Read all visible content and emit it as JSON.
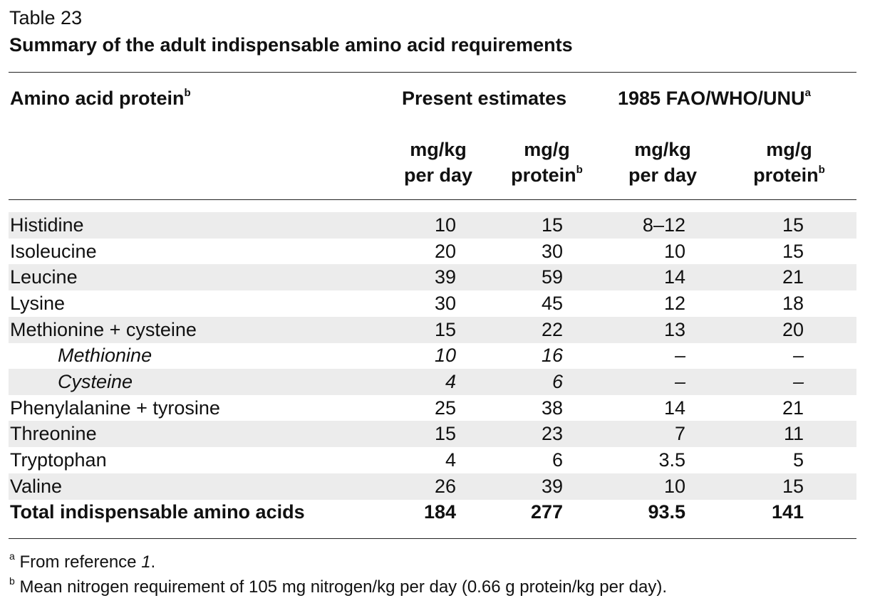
{
  "table_label": "Table 23",
  "title": "Summary of the adult indispensable amino acid requirements",
  "header": {
    "col1": "Amino acid protein",
    "col1_sup": "b",
    "group1": "Present estimates",
    "group2": "1985 FAO/WHO/UNU",
    "group2_sup": "a",
    "sub": [
      {
        "line1": "mg/kg",
        "line2": "per day",
        "sup": ""
      },
      {
        "line1": "mg/g",
        "line2": "protein",
        "sup": "b"
      },
      {
        "line1": "mg/kg",
        "line2": "per day",
        "sup": ""
      },
      {
        "line1": "mg/g",
        "line2": "protein",
        "sup": "b"
      }
    ]
  },
  "rows": [
    {
      "name": "Histidine",
      "v1": "10",
      "v2": "15",
      "v3": "8–12",
      "v4": "15"
    },
    {
      "name": "Isoleucine",
      "v1": "20",
      "v2": "30",
      "v3": "10",
      "v4": "15"
    },
    {
      "name": "Leucine",
      "v1": "39",
      "v2": "59",
      "v3": "14",
      "v4": "21"
    },
    {
      "name": "Lysine",
      "v1": "30",
      "v2": "45",
      "v3": "12",
      "v4": "18"
    },
    {
      "name": "Methionine + cysteine",
      "v1": "15",
      "v2": "22",
      "v3": "13",
      "v4": "20"
    },
    {
      "name": "Methionine",
      "v1": "10",
      "v2": "16",
      "v3": "–",
      "v4": "–"
    },
    {
      "name": "Cysteine",
      "v1": "4",
      "v2": "6",
      "v3": "–",
      "v4": "–"
    },
    {
      "name": "Phenylalanine + tyrosine",
      "v1": "25",
      "v2": "38",
      "v3": "14",
      "v4": "21"
    },
    {
      "name": "Threonine",
      "v1": "15",
      "v2": "23",
      "v3": "7",
      "v4": "11"
    },
    {
      "name": "Tryptophan",
      "v1": "4",
      "v2": "6",
      "v3": "3.5",
      "v4": "5"
    },
    {
      "name": "Valine",
      "v1": "26",
      "v2": "39",
      "v3": "10",
      "v4": "15"
    },
    {
      "name": "Total indispensable amino acids",
      "v1": "184",
      "v2": "277",
      "v3": "93.5",
      "v4": "141"
    }
  ],
  "footnotes": [
    {
      "mark": "a",
      "text": "From reference ",
      "italic": "1",
      "tail": "."
    },
    {
      "mark": "b",
      "text": "Mean nitrogen requirement of 105 mg nitrogen/kg per day (0.66 g protein/kg per day).",
      "italic": "",
      "tail": ""
    }
  ],
  "colors": {
    "shade": "#ececec",
    "rule": "#222222"
  }
}
